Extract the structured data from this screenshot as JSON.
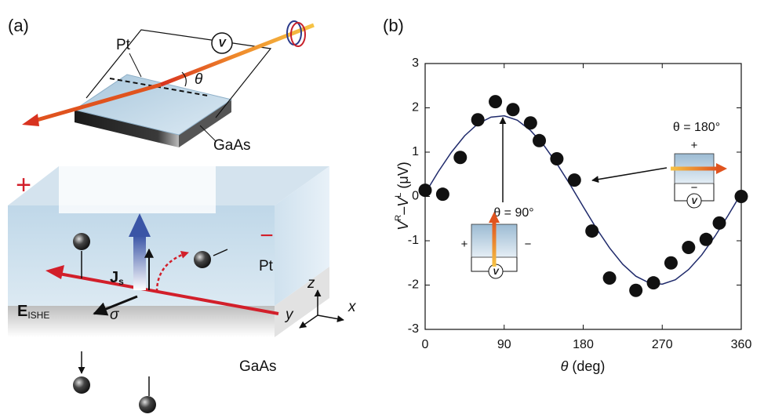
{
  "diagram": {
    "panel_label": "(a)",
    "top": {
      "metal": "Pt",
      "voltmeter": "V",
      "angle": "θ",
      "substrate": "GaAs"
    },
    "bottom": {
      "plus": "+",
      "minus": "−",
      "metal": "Pt",
      "spin_current": "J",
      "spin_current_sub": "s",
      "field": "E",
      "field_sub": "ISHE",
      "spin": "σ",
      "axis_z": "z",
      "axis_y": "y",
      "axis_x": "x",
      "substrate": "GaAs"
    }
  },
  "chart_data": {
    "type": "scatter",
    "panel_label": "(b)",
    "xlabel": [
      "θ",
      " (deg)"
    ],
    "ylabel": [
      "V",
      "R",
      "–",
      "V",
      "L",
      " (μV)"
    ],
    "xlim": [
      0,
      360
    ],
    "xticks": [
      0,
      90,
      180,
      270,
      360
    ],
    "ylim": [
      -3,
      3
    ],
    "yticks": [
      -3,
      -2,
      -1,
      0,
      1,
      2,
      3
    ],
    "points": {
      "color": "#111111",
      "x": [
        0,
        20,
        40,
        60,
        80,
        100,
        120,
        130,
        150,
        170,
        190,
        210,
        240,
        260,
        280,
        300,
        320,
        335,
        360
      ],
      "values": [
        0.14,
        0.05,
        0.88,
        1.73,
        2.14,
        1.96,
        1.66,
        1.26,
        0.85,
        0.37,
        -0.78,
        -1.84,
        -2.12,
        -1.95,
        -1.5,
        -1.15,
        -0.97,
        -0.6,
        0.0
      ]
    },
    "fit": {
      "color": "#1f2a6b",
      "x": [
        0,
        15,
        30,
        45,
        60,
        75,
        90,
        105,
        120,
        135,
        150,
        165,
        180,
        195,
        210,
        225,
        240,
        255,
        270,
        285,
        300,
        315,
        330,
        345,
        360
      ],
      "values": [
        0.07,
        0.56,
        1.0,
        1.37,
        1.64,
        1.79,
        1.82,
        1.72,
        1.49,
        1.16,
        0.74,
        0.27,
        -0.23,
        -0.72,
        -1.16,
        -1.53,
        -1.8,
        -1.95,
        -1.98,
        -1.88,
        -1.65,
        -1.32,
        -0.9,
        -0.43,
        0.07
      ]
    },
    "annotations": [
      {
        "text": "θ = 90°",
        "plus": "+",
        "minus": "−",
        "voltmeter": "V"
      },
      {
        "text": "θ = 180°",
        "plus": "+",
        "minus": "−",
        "voltmeter": "V"
      }
    ]
  }
}
